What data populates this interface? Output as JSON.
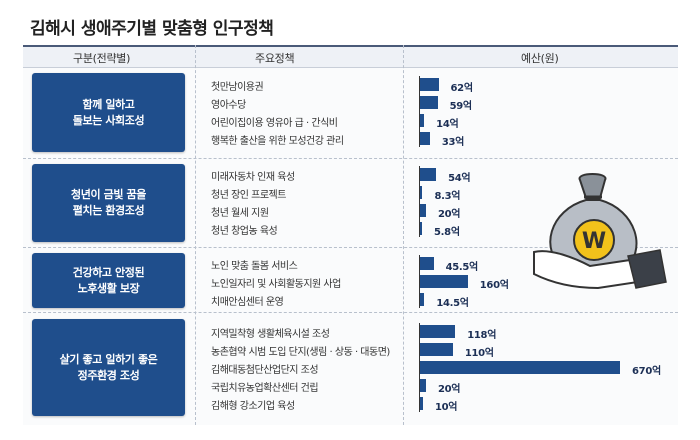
{
  "title": "김해시 생애주기별 맞춤형 인구정책",
  "header": {
    "col1": "구분(전략별)",
    "col2": "주요정책",
    "col3": "예산(원)"
  },
  "colors": {
    "accent": "#1f4e8c",
    "header_bg": "#eef1f6"
  },
  "groups": [
    {
      "label": "함께 일하고\n돌보는 사회조성",
      "items": [
        0,
        1,
        2,
        3
      ]
    },
    {
      "label": "청년이 금빛 꿈을\n펼치는 환경조성",
      "items": [
        4,
        5,
        6,
        7
      ]
    },
    {
      "label": "건강하고 안정된\n노후생활 보장",
      "items": [
        8,
        9,
        10
      ]
    },
    {
      "label": "살기 좋고 일하기 좋은\n정주환경 조성",
      "items": [
        11,
        12,
        13,
        14,
        15
      ]
    }
  ],
  "chart_data": {
    "type": "bar",
    "orientation": "horizontal",
    "unit": "억",
    "categories": [
      "첫만남이용권",
      "영아수당",
      "어린이집이용 영유아 급 · 간식비",
      "행복한 출산을 위한 모성건강 관리",
      "미래자동차 인재 육성",
      "청년 장인 프로젝트",
      "청년 월세 지원",
      "청년 창업농 육성",
      "노인 맞춤 돌봄 서비스",
      "노인일자리 및 사회활동지원 사업",
      "치매안심센터 운영",
      "지역밀착형 생활체육시설 조성",
      "농촌협약 시범 도입 단지(생림 · 상동 · 대동면)",
      "김해대동첨단산업단지 조성",
      "국립치유농업확산센터 건립",
      "김해형 강소기업 육성"
    ],
    "values": [
      62,
      59,
      14,
      33,
      54,
      8.3,
      20,
      5.8,
      45.5,
      160,
      14.5,
      118,
      110,
      670,
      20,
      10
    ],
    "labels": [
      "62억",
      "59억",
      "14억",
      "33억",
      "54억",
      "8.3억",
      "20억",
      "5.8억",
      "45.5억",
      "160억",
      "14.5억",
      "118억",
      "110억",
      "670억",
      "20억",
      "10억"
    ]
  }
}
